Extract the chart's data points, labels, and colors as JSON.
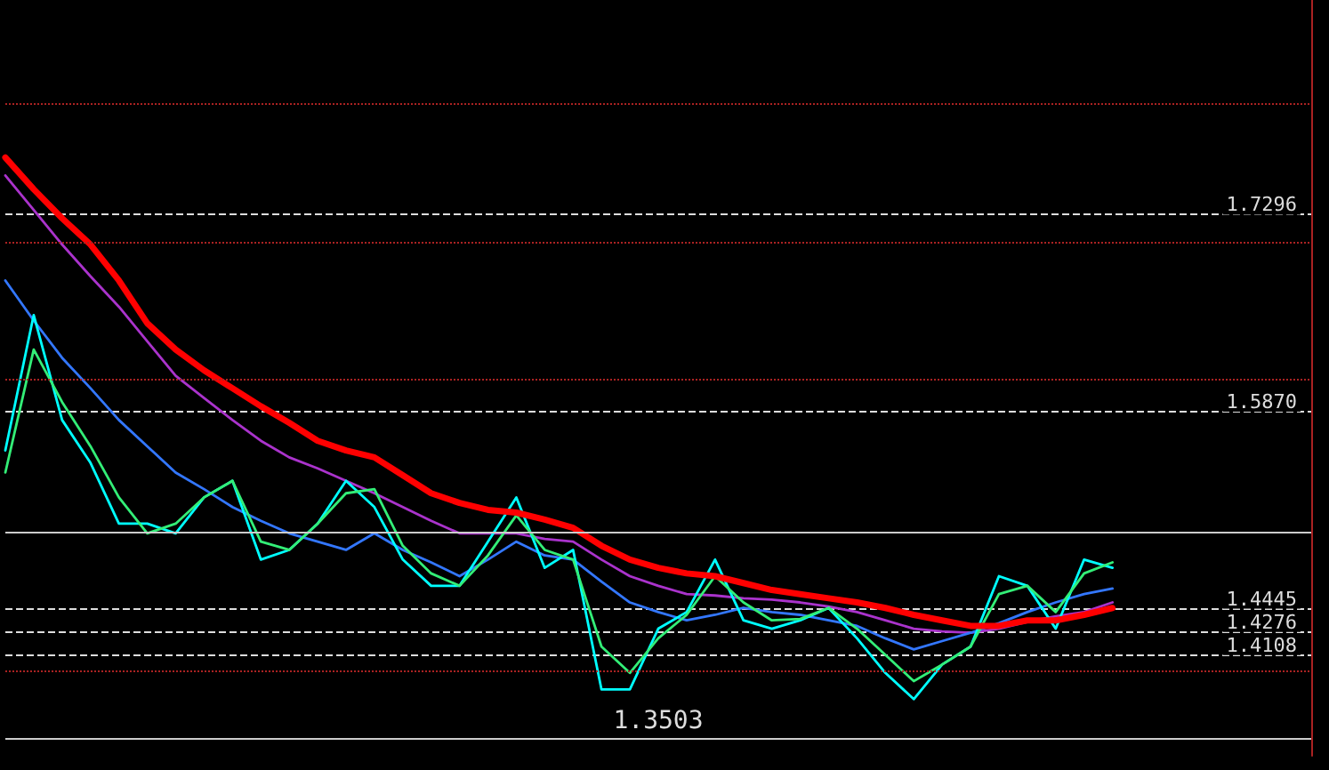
{
  "chart_data": {
    "type": "line",
    "categories": [
      null,
      null,
      null,
      null,
      null,
      null,
      null,
      null,
      null,
      null,
      null,
      null,
      null,
      null,
      null,
      null,
      null,
      null,
      null,
      null,
      null,
      null,
      null,
      null,
      null,
      null,
      null,
      null,
      null,
      null,
      null,
      null,
      null,
      null,
      null,
      null,
      null,
      null,
      null,
      null,
      null,
      null,
      null,
      null,
      null,
      null,
      null
    ],
    "series": [
      {
        "color": "#aa33cc",
        "values": [
          1.758,
          1.733,
          1.708,
          1.685,
          1.663,
          1.638,
          1.613,
          1.597,
          1.581,
          1.566,
          1.554,
          1.546,
          1.537,
          1.528,
          1.518,
          1.508,
          1.499,
          1.499,
          1.499,
          1.495,
          1.493,
          1.48,
          1.468,
          1.461,
          1.455,
          1.454,
          1.452,
          1.451,
          1.449,
          1.446,
          1.442,
          1.436,
          1.43,
          1.428,
          1.427,
          1.43,
          1.435,
          1.439,
          1.442,
          1.449,
          null,
          null,
          null,
          null,
          null,
          null,
          null
        ]
      },
      {
        "color": "#3377ff",
        "values": [
          1.682,
          1.653,
          1.626,
          1.604,
          1.581,
          1.562,
          1.543,
          1.531,
          1.518,
          1.508,
          1.499,
          1.493,
          1.487,
          1.499,
          1.487,
          1.478,
          1.468,
          1.48,
          1.493,
          1.483,
          1.48,
          1.464,
          1.449,
          1.442,
          1.436,
          1.44,
          1.445,
          1.442,
          1.44,
          1.436,
          1.432,
          1.423,
          1.415,
          1.421,
          1.427,
          1.434,
          1.442,
          1.449,
          1.455,
          1.459,
          null,
          null,
          null,
          null,
          null,
          null,
          null
        ]
      },
      {
        "color": "#00ffff",
        "values": [
          1.559,
          1.657,
          1.581,
          1.55,
          1.506,
          1.506,
          1.499,
          1.525,
          1.537,
          1.48,
          1.487,
          1.506,
          1.537,
          1.518,
          1.48,
          1.461,
          1.461,
          1.493,
          1.525,
          1.474,
          1.487,
          1.386,
          1.386,
          1.43,
          1.442,
          1.48,
          1.436,
          1.43,
          1.436,
          1.445,
          1.423,
          1.398,
          1.379,
          1.404,
          1.417,
          1.468,
          1.461,
          1.43,
          1.48,
          1.474,
          null,
          null,
          null,
          null,
          null,
          null,
          null
        ]
      },
      {
        "color": "#33ee77",
        "values": [
          1.543,
          1.632,
          1.594,
          1.562,
          1.525,
          1.499,
          1.506,
          1.525,
          1.537,
          1.493,
          1.487,
          1.506,
          1.528,
          1.531,
          1.49,
          1.47,
          1.461,
          1.483,
          1.512,
          1.487,
          1.48,
          1.417,
          1.398,
          1.423,
          1.44,
          1.468,
          1.449,
          1.436,
          1.437,
          1.445,
          1.43,
          1.411,
          1.392,
          1.404,
          1.417,
          1.455,
          1.461,
          1.442,
          1.47,
          1.478,
          null,
          null,
          null,
          null,
          null,
          null,
          null
        ]
      },
      {
        "color": "#ff0000",
        "values": [
          1.771,
          1.748,
          1.727,
          1.708,
          1.682,
          1.651,
          1.632,
          1.617,
          1.604,
          1.591,
          1.579,
          1.566,
          1.559,
          1.554,
          1.541,
          1.528,
          1.521,
          1.516,
          1.514,
          1.509,
          1.503,
          1.49,
          1.48,
          1.474,
          1.47,
          1.468,
          1.463,
          1.458,
          1.455,
          1.452,
          1.449,
          1.445,
          1.44,
          1.436,
          1.432,
          1.432,
          1.436,
          1.436,
          1.44,
          1.445,
          null,
          null,
          null,
          null,
          null,
          null,
          null
        ]
      }
    ],
    "ylim": [
      1.338,
      1.885
    ],
    "yticks": [
      1.4108,
      1.4276,
      1.4445,
      {
        "value": 1.587,
        "label": "1.5870"
      },
      1.7296
    ],
    "grid": "y",
    "marker": "none",
    "ref_lines": [
      {
        "axis": "y",
        "value": 1.81,
        "label": null,
        "color": "#aa2222",
        "line_style": "dotted"
      },
      {
        "axis": "y",
        "value": 1.71,
        "label": null,
        "color": "#aa2222",
        "line_style": "dotted"
      },
      {
        "axis": "y",
        "value": 1.61,
        "label": null,
        "color": "#aa2222",
        "line_style": "dotted"
      },
      {
        "axis": "y",
        "value": 1.4,
        "label": null,
        "color": "#aa2222",
        "line_style": "dotted"
      },
      {
        "axis": "y",
        "value": 1.5,
        "label": null,
        "color": "#cccccc",
        "line_style": "solid"
      },
      {
        "axis": "y",
        "value": 1.3503,
        "label": "1.3503",
        "color": "#cccccc",
        "line_style": "solid"
      }
    ]
  }
}
